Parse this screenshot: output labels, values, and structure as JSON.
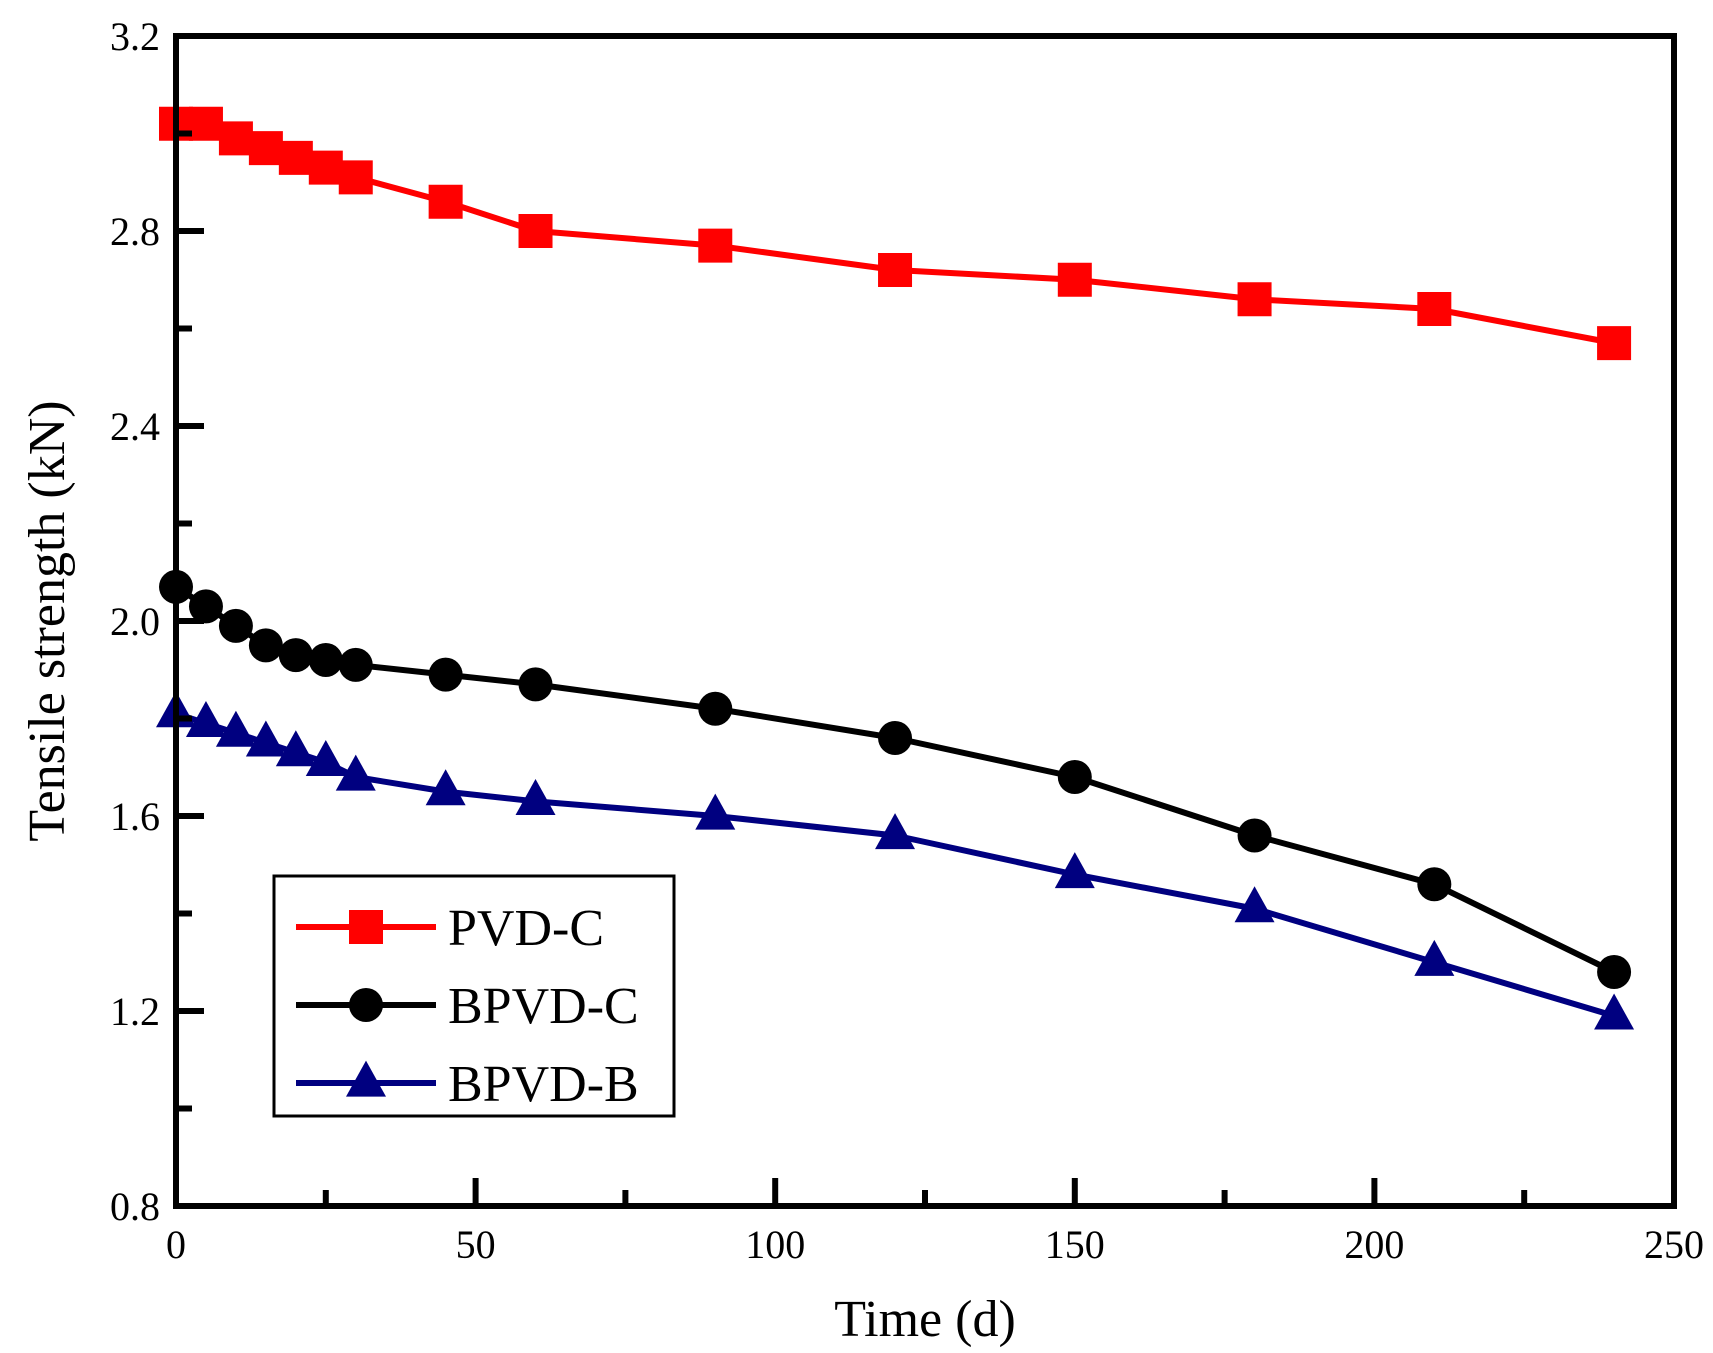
{
  "chart_data": {
    "type": "line",
    "title": "",
    "xlabel": "Time (d)",
    "ylabel": "Tensile strength (kN)",
    "xlim": [
      0,
      250
    ],
    "ylim": [
      0.8,
      3.2
    ],
    "xticks": [
      0,
      50,
      100,
      150,
      200,
      250
    ],
    "xtick_labels": [
      "0",
      "50",
      "100",
      "150",
      "200",
      "250"
    ],
    "yticks": [
      0.8,
      1.2,
      1.6,
      2.0,
      2.4,
      2.8,
      3.2
    ],
    "ytick_labels": [
      "0.8",
      "1.2",
      "1.6",
      "2.0",
      "2.4",
      "2.8",
      "3.2"
    ],
    "grid": false,
    "legend_position": "lower-left",
    "series": [
      {
        "name": "PVD-C",
        "color": "#ff0000",
        "marker": "square",
        "x": [
          0,
          5,
          10,
          15,
          20,
          25,
          30,
          45,
          60,
          90,
          120,
          150,
          180,
          210,
          240
        ],
        "y": [
          3.02,
          3.02,
          2.99,
          2.97,
          2.95,
          2.93,
          2.91,
          2.86,
          2.8,
          2.77,
          2.72,
          2.7,
          2.66,
          2.64,
          2.57
        ]
      },
      {
        "name": "BPVD-C",
        "color": "#000000",
        "marker": "circle",
        "x": [
          0,
          5,
          10,
          15,
          20,
          25,
          30,
          45,
          60,
          90,
          120,
          150,
          180,
          210,
          240
        ],
        "y": [
          2.07,
          2.03,
          1.99,
          1.95,
          1.93,
          1.92,
          1.91,
          1.89,
          1.87,
          1.82,
          1.76,
          1.68,
          1.56,
          1.46,
          1.28
        ]
      },
      {
        "name": "BPVD-B",
        "color": "#000080",
        "marker": "triangle",
        "x": [
          0,
          5,
          10,
          15,
          20,
          25,
          30,
          45,
          60,
          90,
          120,
          150,
          180,
          210,
          240
        ],
        "y": [
          1.81,
          1.79,
          1.77,
          1.75,
          1.73,
          1.71,
          1.68,
          1.65,
          1.63,
          1.6,
          1.56,
          1.48,
          1.41,
          1.3,
          1.19
        ]
      }
    ]
  }
}
